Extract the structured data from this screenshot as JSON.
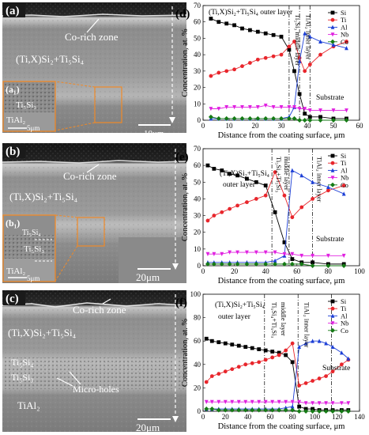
{
  "micrographs": [
    {
      "tag": "(a)",
      "labels": [
        "Co-rich zone",
        "(Ti,X)Si₂+Ti₅Si₄"
      ],
      "inset_tag": "(a₁)",
      "inset_labels": [
        "Ti₅Si₃",
        "TiAl₂"
      ],
      "inset_scale": "5μm",
      "scale": "10μm"
    },
    {
      "tag": "(b)",
      "labels": [
        "Co-rich zone",
        "(Ti,X)Si₂+Ti₅Si₄"
      ],
      "inset_tag": "(b₁)",
      "inset_labels": [
        "Ti₅Si₄",
        "Ti₅Si₃",
        "TiAl₂"
      ],
      "inset_scale": "5μm",
      "scale": "20μm"
    },
    {
      "tag": "(c)",
      "labels": [
        "Co-rich zone",
        "(Ti,X)Si₂+Ti₅Si₄",
        "Ti₅Si₄",
        "Ti₅Si₃",
        "Micro-holes",
        "TiAl₂"
      ],
      "scale": "20μm"
    }
  ],
  "series_colors": {
    "Si": "#000000",
    "Ti": "#e8262c",
    "Al": "#1c3fd6",
    "Nb": "#e020e0",
    "Co": "#157a15"
  },
  "chart_data": [
    {
      "type": "line",
      "panel": "(d)",
      "xlabel": "Distance from the coating surface, μm",
      "ylabel": "Concentration, at. %",
      "xlim": [
        0,
        60
      ],
      "ylim": [
        0,
        70
      ],
      "xticks": [
        0,
        10,
        20,
        30,
        40,
        50,
        60
      ],
      "yticks": [
        0,
        10,
        20,
        30,
        40,
        50,
        60,
        70
      ],
      "legend": "top-right",
      "annotations": [
        "(Ti,X)Si₂+Ti₅Si₄ outer layer",
        "Ti₅Si₃ middle layer",
        "TiAl₂ inner layer",
        "Substrate"
      ],
      "region_boundaries": [
        33,
        37,
        41
      ],
      "series": [
        {
          "name": "Si",
          "x": [
            3,
            6,
            9,
            12,
            15,
            18,
            21,
            24,
            27,
            30,
            33,
            35,
            37,
            39,
            41,
            45,
            50,
            55
          ],
          "y": [
            62,
            60,
            59,
            58,
            56,
            55,
            54,
            53,
            52,
            51,
            43,
            30,
            16,
            4,
            2,
            2,
            1,
            1
          ]
        },
        {
          "name": "Ti",
          "x": [
            3,
            6,
            9,
            12,
            15,
            18,
            21,
            24,
            27,
            30,
            33,
            35,
            37,
            39,
            41,
            45,
            50,
            55
          ],
          "y": [
            27,
            29,
            30,
            31,
            33,
            35,
            37,
            38,
            39,
            40,
            45,
            48,
            38,
            30,
            34,
            40,
            45,
            48
          ]
        },
        {
          "name": "Al",
          "x": [
            3,
            6,
            9,
            12,
            15,
            18,
            21,
            24,
            27,
            30,
            33,
            35,
            37,
            39,
            41,
            45,
            50,
            55
          ],
          "y": [
            1,
            1,
            1,
            1,
            1,
            1,
            1,
            1,
            1,
            1,
            2,
            8,
            36,
            53,
            51,
            48,
            46,
            44
          ]
        },
        {
          "name": "Nb",
          "x": [
            3,
            6,
            9,
            12,
            15,
            18,
            21,
            24,
            27,
            30,
            33,
            35,
            37,
            39,
            41,
            45,
            50,
            55
          ],
          "y": [
            7,
            7,
            8,
            8,
            8,
            8,
            8,
            9,
            8,
            8,
            8,
            8,
            7,
            7,
            6,
            6,
            6,
            6
          ]
        },
        {
          "name": "Co",
          "x": [
            3,
            6,
            9,
            12,
            15,
            18,
            21,
            24,
            27,
            30,
            33,
            35,
            37,
            39,
            41,
            45,
            50,
            55
          ],
          "y": [
            2,
            1,
            1,
            1,
            1,
            1,
            1,
            1,
            1,
            1,
            1,
            1,
            0,
            0,
            0,
            0,
            0,
            0
          ]
        }
      ]
    },
    {
      "type": "line",
      "panel": "(e)",
      "xlabel": "Distance from the coating surface, μm",
      "ylabel": "Concentration, at. %",
      "xlim": [
        0,
        100
      ],
      "ylim": [
        0,
        70
      ],
      "xticks": [
        0,
        20,
        40,
        60,
        80,
        100
      ],
      "yticks": [
        0,
        10,
        20,
        30,
        40,
        50,
        60,
        70
      ],
      "legend": "top-right",
      "annotations": [
        "(Ti,X)Si₂+Ti₅Si₄",
        "outer layer",
        "Ti₅Si₄+Ti₅Si₃",
        "middle layer",
        "TiAl₂ inner layer",
        "Substrate"
      ],
      "region_boundaries": [
        44,
        55,
        70
      ],
      "series": [
        {
          "name": "Si",
          "x": [
            3,
            7,
            12,
            17,
            22,
            28,
            34,
            40,
            46,
            52,
            57,
            63,
            70,
            80,
            90
          ],
          "y": [
            60,
            58,
            57,
            55,
            54,
            52,
            50,
            48,
            32,
            14,
            4,
            2,
            2,
            1,
            1
          ]
        },
        {
          "name": "Ti",
          "x": [
            3,
            7,
            12,
            17,
            22,
            28,
            34,
            40,
            46,
            52,
            57,
            63,
            70,
            80,
            90
          ],
          "y": [
            27,
            30,
            32,
            34,
            36,
            38,
            40,
            42,
            56,
            42,
            29,
            35,
            40,
            45,
            48
          ]
        },
        {
          "name": "Al",
          "x": [
            3,
            7,
            12,
            17,
            22,
            28,
            34,
            40,
            46,
            52,
            57,
            63,
            70,
            80,
            90
          ],
          "y": [
            2,
            2,
            2,
            2,
            2,
            2,
            2,
            2,
            3,
            6,
            57,
            54,
            50,
            47,
            43
          ]
        },
        {
          "name": "Nb",
          "x": [
            3,
            7,
            12,
            17,
            22,
            28,
            34,
            40,
            46,
            52,
            57,
            63,
            70,
            80,
            90
          ],
          "y": [
            7,
            7,
            7,
            8,
            8,
            8,
            8,
            8,
            8,
            7,
            7,
            6,
            6,
            6,
            6
          ]
        },
        {
          "name": "Co",
          "x": [
            3,
            7,
            12,
            17,
            22,
            28,
            34,
            40,
            46,
            52,
            57,
            63,
            70,
            80,
            90
          ],
          "y": [
            1,
            1,
            1,
            1,
            1,
            1,
            1,
            1,
            1,
            1,
            1,
            1,
            0,
            0,
            0
          ]
        }
      ]
    },
    {
      "type": "line",
      "panel": "(f)",
      "xlabel": "Distance from the coating surface, μm",
      "ylabel": "Concentration, at. %",
      "xlim": [
        0,
        140
      ],
      "ylim": [
        0,
        100
      ],
      "xticks": [
        0,
        20,
        40,
        60,
        80,
        100,
        120,
        140
      ],
      "yticks": [
        0,
        20,
        40,
        60,
        80,
        100
      ],
      "legend": "top-right",
      "annotations": [
        "(Ti,X)Si₂+Ti₅Si₄",
        "outer layer",
        "Ti₅Si₄+Ti₅Si₃",
        "middle layer",
        "TiAl₂ inner layer",
        "Substrate"
      ],
      "region_boundaries": [
        55,
        85,
        115
      ],
      "series": [
        {
          "name": "Si",
          "x": [
            3,
            8,
            14,
            20,
            26,
            32,
            38,
            44,
            50,
            56,
            62,
            68,
            74,
            80,
            86,
            92,
            98,
            104,
            110,
            116,
            124,
            130
          ],
          "y": [
            62,
            60,
            59,
            58,
            57,
            56,
            55,
            54,
            53,
            52,
            51,
            50,
            48,
            42,
            4,
            2,
            2,
            1,
            1,
            1,
            1,
            1
          ]
        },
        {
          "name": "Ti",
          "x": [
            3,
            8,
            14,
            20,
            26,
            32,
            38,
            44,
            50,
            56,
            62,
            68,
            74,
            80,
            86,
            92,
            98,
            104,
            110,
            116,
            124,
            130
          ],
          "y": [
            25,
            30,
            32,
            34,
            36,
            38,
            40,
            41,
            42,
            44,
            46,
            48,
            52,
            58,
            22,
            24,
            26,
            28,
            30,
            34,
            40,
            44
          ]
        },
        {
          "name": "Al",
          "x": [
            3,
            8,
            14,
            20,
            26,
            32,
            38,
            44,
            50,
            56,
            62,
            68,
            74,
            80,
            86,
            92,
            98,
            104,
            110,
            116,
            124,
            130
          ],
          "y": [
            2,
            2,
            2,
            2,
            2,
            2,
            2,
            2,
            2,
            2,
            2,
            2,
            3,
            4,
            55,
            58,
            60,
            60,
            58,
            55,
            50,
            45
          ]
        },
        {
          "name": "Nb",
          "x": [
            3,
            8,
            14,
            20,
            26,
            32,
            38,
            44,
            50,
            56,
            62,
            68,
            74,
            80,
            86,
            92,
            98,
            104,
            110,
            116,
            124,
            130
          ],
          "y": [
            8,
            8,
            8,
            8,
            8,
            8,
            8,
            8,
            8,
            8,
            8,
            8,
            8,
            8,
            8,
            7,
            7,
            7,
            7,
            7,
            7,
            7
          ]
        },
        {
          "name": "Co",
          "x": [
            3,
            8,
            14,
            20,
            26,
            32,
            38,
            44,
            50,
            56,
            62,
            68,
            74,
            80,
            86,
            92,
            98,
            104,
            110,
            116,
            124,
            130
          ],
          "y": [
            2,
            2,
            1,
            1,
            1,
            1,
            1,
            1,
            1,
            1,
            1,
            1,
            1,
            1,
            0,
            0,
            0,
            0,
            0,
            0,
            0,
            0
          ]
        }
      ]
    }
  ]
}
